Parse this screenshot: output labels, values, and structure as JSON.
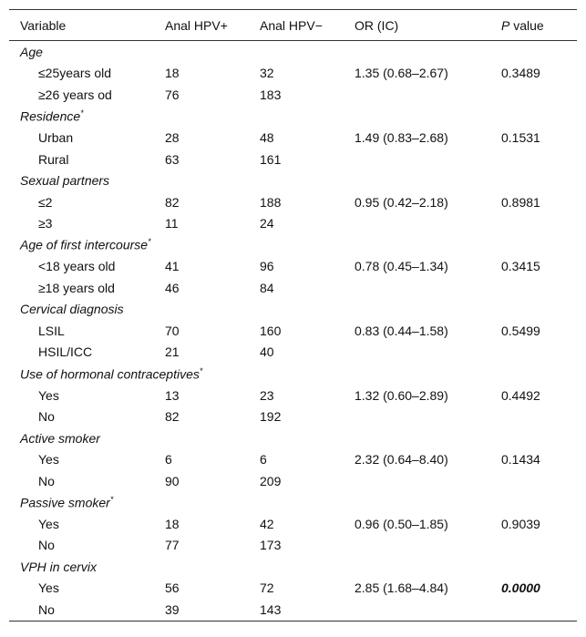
{
  "table": {
    "header": [
      "Variable",
      "Anal HPV+",
      "Anal HPV−",
      "OR (IC)",
      {
        "italic": "P",
        "rest": "value"
      }
    ],
    "groups": [
      {
        "name": "Age",
        "rows": [
          {
            "label": "≤25years old",
            "pos": 18,
            "neg": 32,
            "or": "1.35 (0.68–2.67)",
            "p": "0.3489"
          },
          {
            "label": "≥26 years od",
            "pos": 76,
            "neg": 183
          }
        ]
      },
      {
        "name": "Residence",
        "sup": "*",
        "rows": [
          {
            "label": "Urban",
            "pos": 28,
            "neg": 48,
            "or": "1.49 (0.83–2.68)",
            "p": "0.1531"
          },
          {
            "label": "Rural",
            "pos": 63,
            "neg": 161
          }
        ]
      },
      {
        "name": "Sexual partners",
        "rows": [
          {
            "label": "≤2",
            "pos": 82,
            "neg": 188,
            "or": "0.95 (0.42–2.18)",
            "p": "0.8981"
          },
          {
            "label": "≥3",
            "pos": 11,
            "neg": 24
          }
        ]
      },
      {
        "name": "Age of first intercourse",
        "sup": "*",
        "rows": [
          {
            "label": "<18 years old",
            "pos": 41,
            "neg": 96,
            "or": "0.78 (0.45–1.34)",
            "p": "0.3415"
          },
          {
            "label": "≥18 years old",
            "pos": 46,
            "neg": 84
          }
        ]
      },
      {
        "name": "Cervical diagnosis",
        "rows": [
          {
            "label": "LSIL",
            "pos": 70,
            "neg": 160,
            "or": "0.83 (0.44–1.58)",
            "p": "0.5499"
          },
          {
            "label": "HSIL/ICC",
            "pos": 21,
            "neg": 40
          }
        ]
      },
      {
        "name": "Use of hormonal contraceptives",
        "sup": "*",
        "rows": [
          {
            "label": "Yes",
            "pos": 13,
            "neg": 23,
            "or": "1.32 (0.60–2.89)",
            "p": "0.4492"
          },
          {
            "label": "No",
            "pos": 82,
            "neg": 192
          }
        ]
      },
      {
        "name": "Active smoker",
        "rows": [
          {
            "label": "Yes",
            "pos": 6,
            "neg": 6,
            "or": "2.32 (0.64–8.40)",
            "p": "0.1434"
          },
          {
            "label": "No",
            "pos": 90,
            "neg": 209
          }
        ]
      },
      {
        "name": "Passive smoker",
        "sup": "*",
        "rows": [
          {
            "label": "Yes",
            "pos": 18,
            "neg": 42,
            "or": "0.96 (0.50–1.85)",
            "p": "0.9039"
          },
          {
            "label": "No",
            "pos": 77,
            "neg": 173
          }
        ]
      },
      {
        "name": "VPH in cervix",
        "rows": [
          {
            "label": "Yes",
            "pos": 56,
            "neg": 72,
            "or": "2.85 (1.68–4.84)",
            "p": "0.0000",
            "p_bold": true
          },
          {
            "label": "No",
            "pos": 39,
            "neg": 143
          }
        ]
      }
    ]
  }
}
